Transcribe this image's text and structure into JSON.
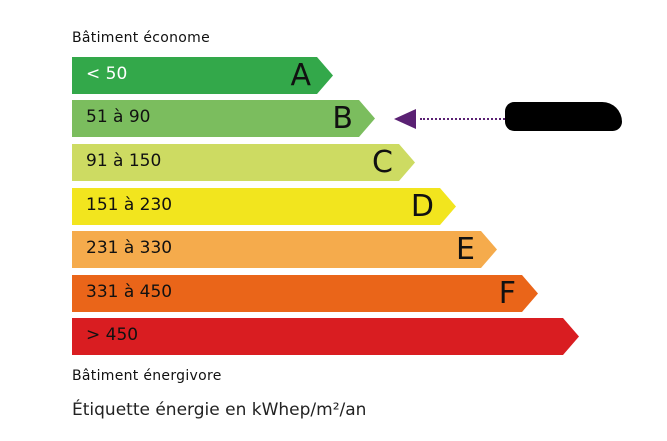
{
  "top_label": "Bâtiment économe",
  "bottom_label": "Bâtiment énergivore",
  "footer": "Étiquette énergie en kWhep/m²/an",
  "classes": [
    {
      "letter": "A",
      "range": "< 50",
      "color": "#33a84a"
    },
    {
      "letter": "B",
      "range": "51 à 90",
      "color": "#7bbd5e"
    },
    {
      "letter": "C",
      "range": "91 à 150",
      "color": "#cddb62"
    },
    {
      "letter": "D",
      "range": "151 à 230",
      "color": "#f2e51e"
    },
    {
      "letter": "E",
      "range": "231 à 330",
      "color": "#f5ab4c"
    },
    {
      "letter": "F",
      "range": "331 à 450",
      "color": "#ea6519"
    },
    {
      "letter": "",
      "range": "> 450",
      "color": "#d91d21"
    }
  ],
  "indicator": {
    "class": "B",
    "color": "#5a2173",
    "value_redacted": true
  }
}
